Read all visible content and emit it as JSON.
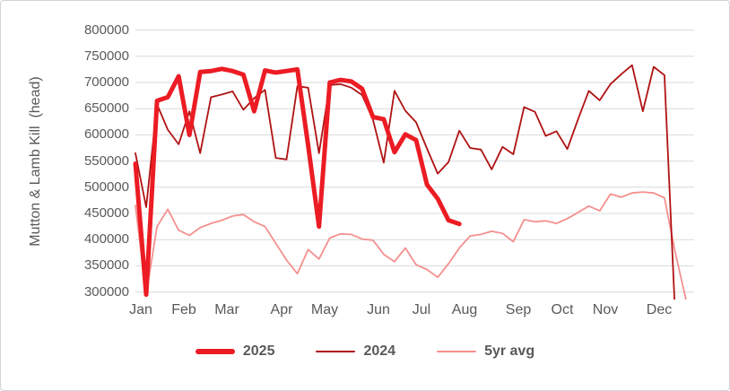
{
  "chart_data": {
    "type": "line",
    "title": "",
    "ylabel": "Mutton & Lamb Kill  (head)",
    "ylim": [
      300000,
      800000
    ],
    "y_tick_step": 50000,
    "y_ticks": [
      "800000",
      "750000",
      "700000",
      "650000",
      "600000",
      "550000",
      "500000",
      "450000",
      "400000",
      "350000",
      "300000"
    ],
    "x_months": [
      "Jan",
      "Feb",
      "Mar",
      "Apr",
      "May",
      "Jun",
      "Jul",
      "Aug",
      "Sep",
      "Oct",
      "Nov",
      "Dec"
    ],
    "weeks_per_month": [
      4,
      4,
      5,
      4,
      5,
      4,
      4,
      5,
      4,
      4,
      5,
      4
    ],
    "grid": "horizontal-only",
    "grid_color": "#d9d9d9",
    "axis_text_color": "#595959",
    "legend_position": "bottom",
    "series": [
      {
        "name": "2025",
        "color": "#ec1c24",
        "width": 5,
        "values": [
          545000,
          295000,
          665000,
          672000,
          712000,
          600000,
          720000,
          722000,
          726000,
          722000,
          715000,
          645000,
          723000,
          719000,
          722000,
          725000,
          580000,
          425000,
          700000,
          705000,
          702000,
          688000,
          634000,
          630000,
          567000,
          601000,
          590000,
          505000,
          478000,
          437000,
          430000
        ]
      },
      {
        "name": "2024",
        "color": "#b01212",
        "width": 1.8,
        "values": [
          565000,
          462000,
          658000,
          610000,
          582000,
          645000,
          565000,
          672000,
          677000,
          683000,
          648000,
          670000,
          686000,
          556000,
          553000,
          693000,
          690000,
          565000,
          695000,
          697000,
          690000,
          676000,
          629000,
          547000,
          684000,
          646000,
          624000,
          574000,
          526000,
          548000,
          608000,
          575000,
          572000,
          534000,
          577000,
          563000,
          653000,
          644000,
          598000,
          607000,
          573000,
          630000,
          684000,
          666000,
          697000,
          716000,
          733000,
          645000,
          730000,
          714000,
          250000
        ]
      },
      {
        "name": "5yr avg",
        "color": "#f4908f",
        "width": 1.8,
        "values": [
          465000,
          295000,
          425000,
          458000,
          418000,
          408000,
          423000,
          431000,
          437000,
          445000,
          448000,
          434000,
          425000,
          393000,
          361000,
          335000,
          381000,
          363000,
          403000,
          411000,
          410000,
          401000,
          399000,
          372000,
          358000,
          384000,
          352000,
          343000,
          328000,
          354000,
          384000,
          407000,
          410000,
          416000,
          412000,
          396000,
          438000,
          434000,
          436000,
          431000,
          440000,
          452000,
          464000,
          455000,
          487000,
          481000,
          489000,
          491000,
          489000,
          480000,
          375000,
          285000
        ]
      }
    ]
  }
}
